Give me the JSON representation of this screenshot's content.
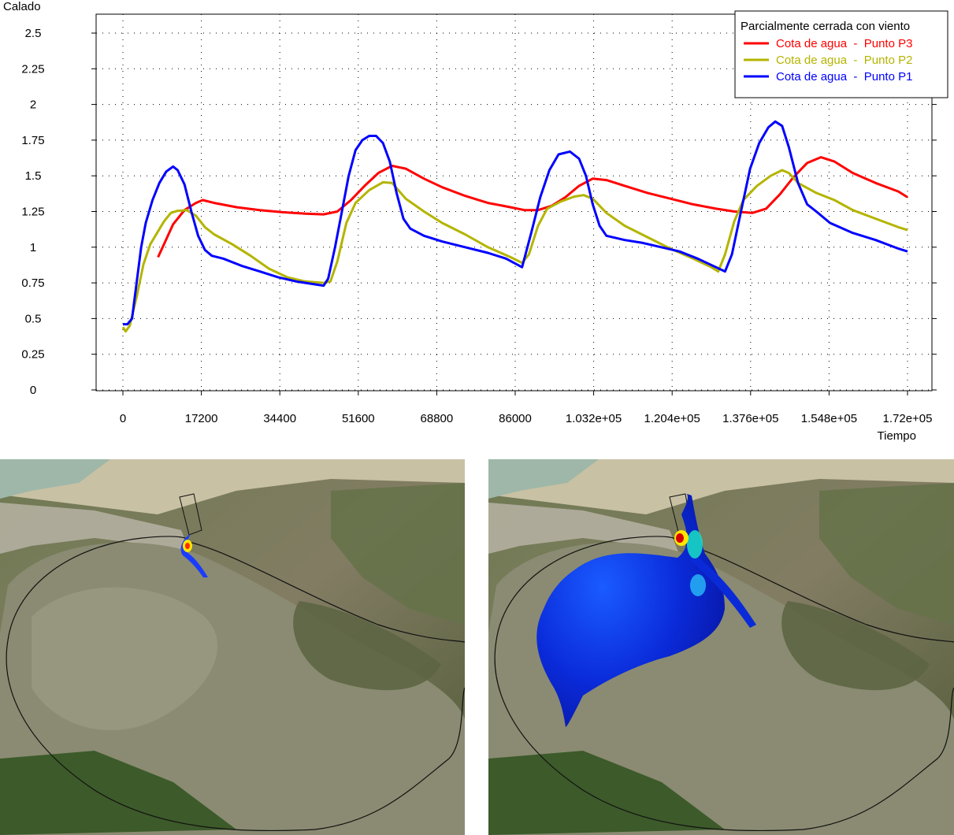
{
  "chart_data": {
    "type": "line",
    "title": "",
    "xlabel": "Tiempo",
    "ylabel": "Calado",
    "xlim": [
      -5000,
      176000
    ],
    "ylim": [
      0,
      2.6
    ],
    "xticks": [
      0,
      17200,
      34400,
      51600,
      68800,
      86000,
      103200,
      120400,
      137600,
      154800,
      172000
    ],
    "xtick_labels": [
      "0",
      "17200",
      "34400",
      "51600",
      "68800",
      "86000",
      "1.032e+05",
      "1.204e+05",
      "1.376e+05",
      "1.548e+05",
      "1.72e+05"
    ],
    "yticks": [
      0,
      0.25,
      0.5,
      0.75,
      1,
      1.25,
      1.5,
      1.75,
      2,
      2.25,
      2.5
    ],
    "ytick_labels": [
      "0",
      "0.25",
      "0.5",
      "0.75",
      "1",
      "1.25",
      "1.5",
      "1.75",
      "2",
      "2.25",
      "2.5"
    ],
    "grid": true,
    "legend": {
      "title": "Parcialmente cerrada con viento",
      "position": "top-right"
    },
    "series": [
      {
        "name": "Cota de agua  -  Punto P3",
        "color": "#ff0000",
        "points": [
          [
            7700,
            0.93
          ],
          [
            9000,
            1.02
          ],
          [
            11000,
            1.16
          ],
          [
            13500,
            1.26
          ],
          [
            16000,
            1.31
          ],
          [
            17500,
            1.33
          ],
          [
            20000,
            1.31
          ],
          [
            25000,
            1.28
          ],
          [
            30000,
            1.26
          ],
          [
            35000,
            1.245
          ],
          [
            40000,
            1.235
          ],
          [
            44000,
            1.23
          ],
          [
            47000,
            1.25
          ],
          [
            50000,
            1.33
          ],
          [
            53000,
            1.43
          ],
          [
            56000,
            1.52
          ],
          [
            59000,
            1.57
          ],
          [
            62000,
            1.55
          ],
          [
            66000,
            1.48
          ],
          [
            70000,
            1.42
          ],
          [
            75000,
            1.36
          ],
          [
            80000,
            1.31
          ],
          [
            85000,
            1.28
          ],
          [
            88000,
            1.26
          ],
          [
            91000,
            1.26
          ],
          [
            94000,
            1.29
          ],
          [
            97000,
            1.35
          ],
          [
            100000,
            1.43
          ],
          [
            103000,
            1.48
          ],
          [
            106000,
            1.47
          ],
          [
            110000,
            1.43
          ],
          [
            115000,
            1.38
          ],
          [
            120000,
            1.34
          ],
          [
            125000,
            1.3
          ],
          [
            130000,
            1.27
          ],
          [
            134000,
            1.25
          ],
          [
            138000,
            1.24
          ],
          [
            141000,
            1.27
          ],
          [
            144000,
            1.37
          ],
          [
            147000,
            1.49
          ],
          [
            150000,
            1.59
          ],
          [
            153000,
            1.63
          ],
          [
            156000,
            1.6
          ],
          [
            160000,
            1.52
          ],
          [
            165000,
            1.45
          ],
          [
            170000,
            1.39
          ],
          [
            172000,
            1.35
          ]
        ]
      },
      {
        "name": "Cota de agua  -  Punto P2",
        "color": "#b4b400",
        "points": [
          [
            0,
            0.44
          ],
          [
            600,
            0.41
          ],
          [
            1500,
            0.45
          ],
          [
            3000,
            0.65
          ],
          [
            4500,
            0.88
          ],
          [
            6000,
            1.02
          ],
          [
            7500,
            1.1
          ],
          [
            9000,
            1.18
          ],
          [
            10500,
            1.24
          ],
          [
            12000,
            1.255
          ],
          [
            14000,
            1.26
          ],
          [
            16000,
            1.22
          ],
          [
            18000,
            1.14
          ],
          [
            20000,
            1.09
          ],
          [
            24000,
            1.02
          ],
          [
            28000,
            0.94
          ],
          [
            32000,
            0.85
          ],
          [
            36000,
            0.79
          ],
          [
            40000,
            0.76
          ],
          [
            44000,
            0.75
          ],
          [
            45500,
            0.76
          ],
          [
            47000,
            0.9
          ],
          [
            49000,
            1.17
          ],
          [
            51000,
            1.31
          ],
          [
            54000,
            1.4
          ],
          [
            57000,
            1.455
          ],
          [
            59000,
            1.45
          ],
          [
            62000,
            1.34
          ],
          [
            66000,
            1.25
          ],
          [
            70000,
            1.17
          ],
          [
            75000,
            1.09
          ],
          [
            80000,
            1.0
          ],
          [
            85000,
            0.93
          ],
          [
            87500,
            0.89
          ],
          [
            89000,
            0.95
          ],
          [
            91000,
            1.15
          ],
          [
            93000,
            1.27
          ],
          [
            96000,
            1.32
          ],
          [
            99000,
            1.355
          ],
          [
            101000,
            1.365
          ],
          [
            103000,
            1.34
          ],
          [
            106000,
            1.24
          ],
          [
            110000,
            1.15
          ],
          [
            115000,
            1.07
          ],
          [
            120000,
            0.99
          ],
          [
            125000,
            0.92
          ],
          [
            129000,
            0.86
          ],
          [
            130500,
            0.83
          ],
          [
            132000,
            0.95
          ],
          [
            134000,
            1.18
          ],
          [
            136000,
            1.33
          ],
          [
            139000,
            1.43
          ],
          [
            142000,
            1.5
          ],
          [
            144500,
            1.54
          ],
          [
            146000,
            1.52
          ],
          [
            148000,
            1.45
          ],
          [
            152000,
            1.38
          ],
          [
            156000,
            1.33
          ],
          [
            160000,
            1.26
          ],
          [
            165000,
            1.2
          ],
          [
            170000,
            1.14
          ],
          [
            172000,
            1.12
          ]
        ]
      },
      {
        "name": "Cota de agua  -  Punto P1",
        "color": "#0000ff",
        "points": [
          [
            0,
            0.46
          ],
          [
            1000,
            0.46
          ],
          [
            2000,
            0.5
          ],
          [
            3000,
            0.75
          ],
          [
            4000,
            1.0
          ],
          [
            5000,
            1.17
          ],
          [
            6500,
            1.33
          ],
          [
            8000,
            1.45
          ],
          [
            9500,
            1.53
          ],
          [
            11000,
            1.565
          ],
          [
            12000,
            1.54
          ],
          [
            13500,
            1.44
          ],
          [
            15000,
            1.25
          ],
          [
            16500,
            1.08
          ],
          [
            18000,
            0.98
          ],
          [
            19500,
            0.94
          ],
          [
            22000,
            0.92
          ],
          [
            26000,
            0.87
          ],
          [
            30000,
            0.83
          ],
          [
            34000,
            0.79
          ],
          [
            38000,
            0.76
          ],
          [
            42000,
            0.74
          ],
          [
            44000,
            0.73
          ],
          [
            45000,
            0.78
          ],
          [
            46500,
            1.0
          ],
          [
            48000,
            1.25
          ],
          [
            49500,
            1.5
          ],
          [
            51000,
            1.68
          ],
          [
            52500,
            1.75
          ],
          [
            54000,
            1.78
          ],
          [
            55500,
            1.78
          ],
          [
            57000,
            1.73
          ],
          [
            58500,
            1.6
          ],
          [
            60000,
            1.38
          ],
          [
            61500,
            1.2
          ],
          [
            63000,
            1.13
          ],
          [
            66000,
            1.08
          ],
          [
            70000,
            1.04
          ],
          [
            75000,
            1.0
          ],
          [
            80000,
            0.96
          ],
          [
            84000,
            0.92
          ],
          [
            87500,
            0.86
          ],
          [
            89500,
            1.1
          ],
          [
            91500,
            1.35
          ],
          [
            93500,
            1.54
          ],
          [
            95500,
            1.65
          ],
          [
            98000,
            1.67
          ],
          [
            100000,
            1.62
          ],
          [
            101500,
            1.5
          ],
          [
            103000,
            1.3
          ],
          [
            104500,
            1.15
          ],
          [
            106000,
            1.08
          ],
          [
            110000,
            1.05
          ],
          [
            114000,
            1.03
          ],
          [
            118000,
            1.0
          ],
          [
            122000,
            0.97
          ],
          [
            126000,
            0.92
          ],
          [
            130000,
            0.86
          ],
          [
            132000,
            0.83
          ],
          [
            133500,
            0.95
          ],
          [
            135500,
            1.25
          ],
          [
            137500,
            1.55
          ],
          [
            139500,
            1.73
          ],
          [
            141500,
            1.84
          ],
          [
            143000,
            1.88
          ],
          [
            144500,
            1.85
          ],
          [
            146000,
            1.7
          ],
          [
            148000,
            1.45
          ],
          [
            150000,
            1.3
          ],
          [
            152000,
            1.25
          ],
          [
            155000,
            1.17
          ],
          [
            160000,
            1.1
          ],
          [
            165000,
            1.05
          ],
          [
            170000,
            0.99
          ],
          [
            172000,
            0.97
          ]
        ]
      }
    ]
  }
}
